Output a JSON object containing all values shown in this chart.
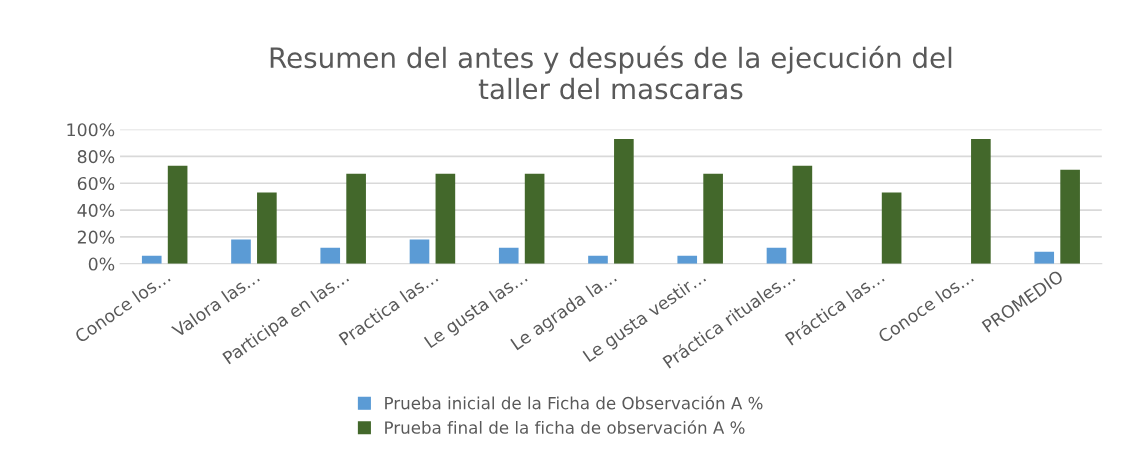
{
  "chart_data": {
    "type": "bar",
    "title": "Resumen del antes y después de la ejecución del\ntaller del mascaras",
    "categories": [
      "Conoce los…",
      "Valora las…",
      "Participa en las…",
      "Practica las…",
      "Le gusta las…",
      "Le agrada la…",
      "Le gusta vestir…",
      "Práctica rituales…",
      "Práctica las…",
      "Conoce los…",
      "PROMEDIO"
    ],
    "series": [
      {
        "name": "Prueba inicial de la Ficha de Observación A %",
        "color": "#5b9bd5",
        "values": [
          6,
          18,
          12,
          18,
          12,
          6,
          6,
          12,
          0,
          0,
          9
        ]
      },
      {
        "name": "Prueba final de la ficha de observación A %",
        "color": "#43682b",
        "values": [
          73,
          53,
          67,
          67,
          67,
          93,
          67,
          73,
          53,
          93,
          70
        ]
      }
    ],
    "ylim": [
      0,
      100
    ],
    "yticks": [
      {
        "value": 0,
        "label": "0%"
      },
      {
        "value": 20,
        "label": "20%"
      },
      {
        "value": 40,
        "label": "40%"
      },
      {
        "value": 60,
        "label": "60%"
      },
      {
        "value": 80,
        "label": "80%"
      },
      {
        "value": 100,
        "label": "100%"
      }
    ],
    "grid": "y",
    "legend": "bottom"
  }
}
